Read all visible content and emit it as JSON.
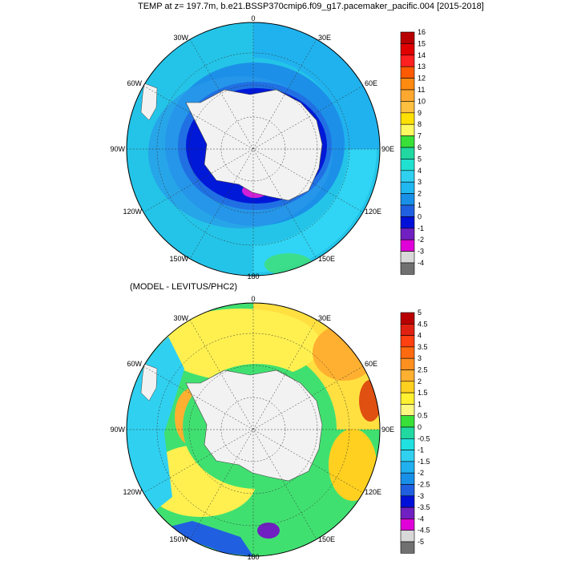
{
  "top_panel": {
    "title": "TEMP at z= 197.7m, b.e21.BSSP370cmip6.f09_g17.pacemaker_pacific.004 [2015-2018]",
    "longitude_labels": [
      "0",
      "30E",
      "60E",
      "90E",
      "120E",
      "150E",
      "180",
      "150W",
      "120W",
      "90W",
      "60W",
      "30W"
    ],
    "colorbar": {
      "labels": [
        "16",
        "15",
        "14",
        "13",
        "12",
        "11",
        "10",
        "9",
        "8",
        "7",
        "6",
        "5",
        "4",
        "3",
        "2",
        "1",
        "0",
        "-1",
        "-2",
        "-3",
        "-4"
      ],
      "colors": [
        "#b80000",
        "#e00000",
        "#ff2020",
        "#ff5a00",
        "#ff8a10",
        "#ffa830",
        "#ffc040",
        "#ffe000",
        "#fff860",
        "#38e038",
        "#20d8a0",
        "#20e0d0",
        "#30d0f0",
        "#20b8f0",
        "#1890e8",
        "#2060e0",
        "#0010d8",
        "#7020c0",
        "#e000d8",
        "#d8d8d8",
        "#707070"
      ]
    }
  },
  "bottom_panel": {
    "title": "(MODEL - LEVITUS/PHC2)",
    "longitude_labels": [
      "0",
      "30E",
      "60E",
      "90E",
      "120E",
      "150E",
      "180",
      "150W",
      "120W",
      "90W",
      "60W",
      "30W"
    ],
    "colorbar": {
      "labels": [
        "5",
        "4.5",
        "4",
        "3.5",
        "3",
        "2.5",
        "2",
        "1.5",
        "1",
        "0.5",
        "0",
        "-0.5",
        "-1",
        "-1.5",
        "-2",
        "-2.5",
        "-3",
        "-3.5",
        "-4",
        "-4.5",
        "-5"
      ],
      "colors": [
        "#b80000",
        "#e02010",
        "#ff4010",
        "#ff6a10",
        "#ff9020",
        "#ffb030",
        "#ffd020",
        "#fff030",
        "#fff880",
        "#38e038",
        "#20d8a0",
        "#20e0e0",
        "#30d0f0",
        "#20b0f0",
        "#1890e8",
        "#2060e0",
        "#0010d8",
        "#7020c0",
        "#e000d8",
        "#d8d8d8",
        "#707070"
      ]
    }
  }
}
